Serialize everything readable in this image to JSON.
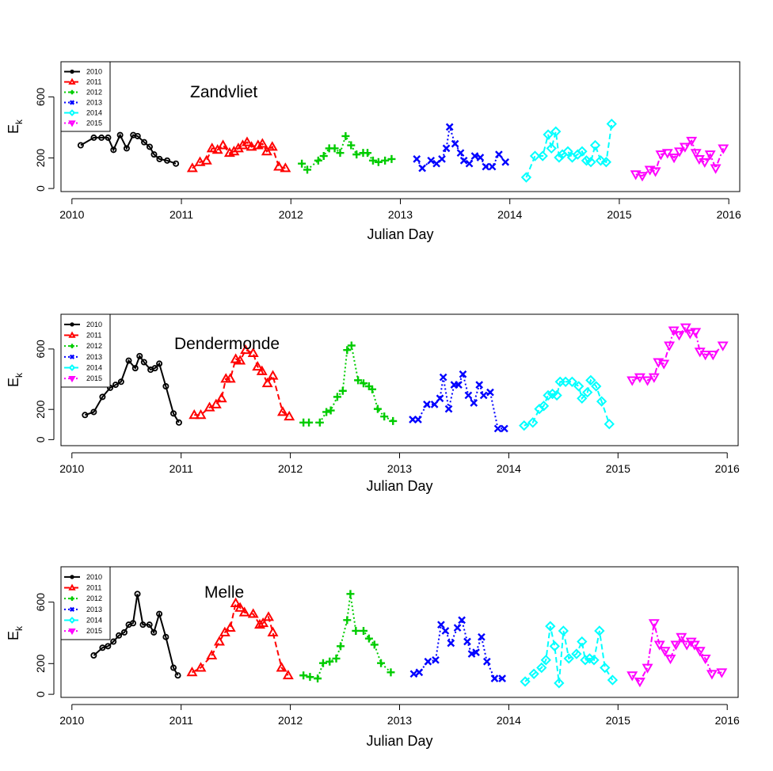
{
  "chart_data": [
    {
      "type": "line",
      "title": "Zandvliet",
      "xlabel": "Julian Day",
      "ylabel": "E",
      "ylabel_sub": "k",
      "xlim": [
        2009.9,
        2016.1
      ],
      "ylim": [
        -20,
        830
      ],
      "xticks": [
        2010,
        2011,
        2012,
        2013,
        2014,
        2015,
        2016
      ],
      "yticks": [
        0,
        200,
        600
      ],
      "legend": {
        "position": "top-left"
      },
      "series": [
        {
          "name": "2010",
          "color": "#000000",
          "marker": "circle",
          "dash": "solid",
          "x": [
            2010.08,
            2010.2,
            2010.27,
            2010.33,
            2010.38,
            2010.44,
            2010.5,
            2010.56,
            2010.6,
            2010.66,
            2010.71,
            2010.75,
            2010.8,
            2010.87,
            2010.95
          ],
          "y": [
            283,
            333,
            333,
            333,
            253,
            350,
            263,
            350,
            343,
            303,
            273,
            223,
            193,
            183,
            163
          ]
        },
        {
          "name": "2011",
          "color": "#ff0000",
          "marker": "triangle",
          "dash": "dashed",
          "x": [
            2011.1,
            2011.17,
            2011.23,
            2011.28,
            2011.33,
            2011.38,
            2011.44,
            2011.48,
            2011.52,
            2011.56,
            2011.6,
            2011.64,
            2011.7,
            2011.74,
            2011.78,
            2011.83,
            2011.89,
            2011.95
          ],
          "y": [
            133,
            173,
            183,
            263,
            253,
            283,
            233,
            243,
            263,
            283,
            303,
            273,
            283,
            293,
            243,
            273,
            143,
            133
          ]
        },
        {
          "name": "2012",
          "color": "#00cc00",
          "marker": "plus",
          "dash": "dotted",
          "x": [
            2012.1,
            2012.15,
            2012.25,
            2012.3,
            2012.35,
            2012.4,
            2012.45,
            2012.5,
            2012.55,
            2012.6,
            2012.66,
            2012.7,
            2012.75,
            2012.8,
            2012.86,
            2012.92
          ],
          "y": [
            163,
            123,
            183,
            213,
            263,
            263,
            233,
            343,
            283,
            223,
            233,
            233,
            183,
            173,
            183,
            193
          ]
        },
        {
          "name": "2013",
          "color": "#0000ff",
          "marker": "x",
          "dash": "dotted",
          "x": [
            2013.15,
            2013.2,
            2013.28,
            2013.33,
            2013.38,
            2013.42,
            2013.45,
            2013.5,
            2013.55,
            2013.58,
            2013.63,
            2013.68,
            2013.73,
            2013.78,
            2013.84,
            2013.9,
            2013.96
          ],
          "y": [
            193,
            133,
            183,
            163,
            193,
            263,
            403,
            293,
            233,
            183,
            163,
            213,
            203,
            143,
            143,
            223,
            173
          ]
        },
        {
          "name": "2014",
          "color": "#00ffff",
          "marker": "diamond",
          "dash": "dashed",
          "x": [
            2014.15,
            2014.23,
            2014.3,
            2014.35,
            2014.38,
            2014.42,
            2014.45,
            2014.48,
            2014.53,
            2014.57,
            2014.62,
            2014.66,
            2014.7,
            2014.74,
            2014.78,
            2014.83,
            2014.88,
            2014.93
          ],
          "y": [
            73,
            213,
            213,
            353,
            263,
            373,
            203,
            223,
            243,
            203,
            223,
            243,
            183,
            173,
            283,
            183,
            173,
            423
          ]
        },
        {
          "name": "2015",
          "color": "#ff00ff",
          "marker": "triangle-down",
          "dash": "dotdash",
          "x": [
            2015.15,
            2015.21,
            2015.28,
            2015.33,
            2015.38,
            2015.44,
            2015.5,
            2015.55,
            2015.6,
            2015.66,
            2015.7,
            2015.73,
            2015.78,
            2015.83,
            2015.88,
            2015.95
          ],
          "y": [
            93,
            83,
            123,
            113,
            223,
            233,
            203,
            243,
            273,
            313,
            233,
            193,
            173,
            223,
            133,
            263
          ]
        }
      ]
    },
    {
      "type": "line",
      "title": "Dendermonde",
      "xlabel": "Julian Day",
      "ylabel": "E",
      "ylabel_sub": "k",
      "xlim": [
        2009.9,
        2016.1
      ],
      "ylim": [
        -40,
        830
      ],
      "xticks": [
        2010,
        2011,
        2012,
        2013,
        2014,
        2015,
        2016
      ],
      "yticks": [
        0,
        200,
        600
      ],
      "legend": {
        "position": "top-left"
      },
      "series": [
        {
          "name": "2010",
          "color": "#000000",
          "marker": "circle",
          "dash": "solid",
          "x": [
            2010.12,
            2010.2,
            2010.28,
            2010.35,
            2010.4,
            2010.45,
            2010.52,
            2010.58,
            2010.62,
            2010.66,
            2010.72,
            2010.76,
            2010.8,
            2010.86,
            2010.93,
            2010.98
          ],
          "y": [
            163,
            183,
            283,
            343,
            363,
            383,
            523,
            473,
            553,
            513,
            463,
            473,
            503,
            353,
            173,
            113
          ]
        },
        {
          "name": "2011",
          "color": "#ff0000",
          "marker": "triangle",
          "dash": "dashed",
          "x": [
            2011.12,
            2011.18,
            2011.26,
            2011.32,
            2011.37,
            2011.41,
            2011.45,
            2011.5,
            2011.54,
            2011.59,
            2011.66,
            2011.7,
            2011.74,
            2011.79,
            2011.84,
            2011.93,
            2011.99
          ],
          "y": [
            163,
            163,
            213,
            233,
            273,
            403,
            403,
            533,
            523,
            593,
            573,
            483,
            453,
            373,
            423,
            183,
            153
          ]
        },
        {
          "name": "2012",
          "color": "#00cc00",
          "marker": "plus",
          "dash": "dotted",
          "x": [
            2012.12,
            2012.17,
            2012.27,
            2012.33,
            2012.37,
            2012.43,
            2012.48,
            2012.52,
            2012.56,
            2012.62,
            2012.67,
            2012.72,
            2012.75,
            2012.8,
            2012.86,
            2012.94
          ],
          "y": [
            113,
            113,
            113,
            183,
            193,
            283,
            323,
            593,
            623,
            393,
            373,
            353,
            333,
            203,
            153,
            123
          ]
        },
        {
          "name": "2013",
          "color": "#0000ff",
          "marker": "x",
          "dash": "dotted",
          "x": [
            2013.12,
            2013.17,
            2013.25,
            2013.32,
            2013.37,
            2013.4,
            2013.45,
            2013.5,
            2013.54,
            2013.58,
            2013.63,
            2013.68,
            2013.73,
            2013.77,
            2013.83,
            2013.9,
            2013.96
          ],
          "y": [
            133,
            133,
            233,
            233,
            273,
            413,
            203,
            363,
            363,
            433,
            293,
            243,
            363,
            293,
            313,
            73,
            73
          ]
        },
        {
          "name": "2014",
          "color": "#00ffff",
          "marker": "diamond",
          "dash": "dashed",
          "x": [
            2014.14,
            2014.22,
            2014.28,
            2014.32,
            2014.36,
            2014.4,
            2014.44,
            2014.47,
            2014.52,
            2014.58,
            2014.64,
            2014.67,
            2014.72,
            2014.75,
            2014.8,
            2014.85,
            2014.92
          ],
          "y": [
            93,
            113,
            203,
            223,
            293,
            303,
            293,
            383,
            383,
            383,
            353,
            273,
            313,
            393,
            353,
            253,
            103
          ]
        },
        {
          "name": "2015",
          "color": "#ff00ff",
          "marker": "triangle-down",
          "dash": "dotdash",
          "x": [
            2015.13,
            2015.2,
            2015.27,
            2015.33,
            2015.37,
            2015.42,
            2015.47,
            2015.51,
            2015.56,
            2015.62,
            2015.66,
            2015.71,
            2015.75,
            2015.8,
            2015.87,
            2015.96
          ],
          "y": [
            393,
            413,
            393,
            413,
            513,
            503,
            623,
            723,
            693,
            743,
            703,
            713,
            583,
            563,
            563,
            623
          ]
        }
      ]
    },
    {
      "type": "line",
      "title": "Melle",
      "xlabel": "Julian Day",
      "ylabel": "E",
      "ylabel_sub": "k",
      "xlim": [
        2009.9,
        2016.1
      ],
      "ylim": [
        -20,
        830
      ],
      "xticks": [
        2010,
        2011,
        2012,
        2013,
        2014,
        2015,
        2016
      ],
      "yticks": [
        0,
        200,
        600
      ],
      "legend": {
        "position": "top-left"
      },
      "series": [
        {
          "name": "2010",
          "color": "#000000",
          "marker": "circle",
          "dash": "solid",
          "x": [
            2010.2,
            2010.28,
            2010.33,
            2010.38,
            2010.43,
            2010.48,
            2010.52,
            2010.56,
            2010.6,
            2010.65,
            2010.71,
            2010.75,
            2010.8,
            2010.86,
            2010.93,
            2010.97
          ],
          "y": [
            253,
            303,
            313,
            343,
            383,
            403,
            453,
            463,
            653,
            453,
            453,
            403,
            523,
            373,
            173,
            123
          ]
        },
        {
          "name": "2011",
          "color": "#ff0000",
          "marker": "triangle",
          "dash": "dashed",
          "x": [
            2011.1,
            2011.18,
            2011.28,
            2011.35,
            2011.4,
            2011.45,
            2011.5,
            2011.54,
            2011.58,
            2011.66,
            2011.72,
            2011.75,
            2011.8,
            2011.84,
            2011.92,
            2011.98
          ],
          "y": [
            143,
            173,
            253,
            343,
            403,
            433,
            593,
            563,
            533,
            523,
            453,
            463,
            503,
            403,
            173,
            123
          ]
        },
        {
          "name": "2012",
          "color": "#00cc00",
          "marker": "plus",
          "dash": "dotted",
          "x": [
            2012.12,
            2012.18,
            2012.25,
            2012.3,
            2012.36,
            2012.42,
            2012.46,
            2012.52,
            2012.55,
            2012.6,
            2012.67,
            2012.72,
            2012.77,
            2012.83,
            2012.92
          ],
          "y": [
            123,
            113,
            103,
            203,
            213,
            233,
            313,
            483,
            653,
            413,
            413,
            363,
            323,
            203,
            143
          ]
        },
        {
          "name": "2013",
          "color": "#0000ff",
          "marker": "x",
          "dash": "dotted",
          "x": [
            2013.13,
            2013.18,
            2013.26,
            2013.33,
            2013.38,
            2013.42,
            2013.47,
            2013.53,
            2013.57,
            2013.62,
            2013.66,
            2013.7,
            2013.75,
            2013.8,
            2013.87,
            2013.94
          ],
          "y": [
            133,
            143,
            213,
            223,
            453,
            413,
            333,
            433,
            483,
            343,
            263,
            273,
            373,
            213,
            103,
            103
          ]
        },
        {
          "name": "2014",
          "color": "#00ffff",
          "marker": "diamond",
          "dash": "dashed",
          "x": [
            2014.15,
            2014.23,
            2014.3,
            2014.34,
            2014.38,
            2014.42,
            2014.46,
            2014.5,
            2014.55,
            2014.62,
            2014.67,
            2014.7,
            2014.74,
            2014.78,
            2014.83,
            2014.88,
            2014.95
          ],
          "y": [
            83,
            133,
            173,
            223,
            443,
            313,
            73,
            413,
            233,
            263,
            343,
            223,
            233,
            223,
            413,
            173,
            93
          ]
        },
        {
          "name": "2015",
          "color": "#ff00ff",
          "marker": "triangle-down",
          "dash": "dotdash",
          "x": [
            2015.13,
            2015.2,
            2015.27,
            2015.33,
            2015.38,
            2015.43,
            2015.48,
            2015.53,
            2015.58,
            2015.63,
            2015.67,
            2015.7,
            2015.75,
            2015.8,
            2015.86,
            2015.95
          ],
          "y": [
            123,
            83,
            173,
            463,
            323,
            283,
            233,
            323,
            373,
            323,
            343,
            323,
            283,
            233,
            133,
            143
          ]
        }
      ]
    }
  ]
}
